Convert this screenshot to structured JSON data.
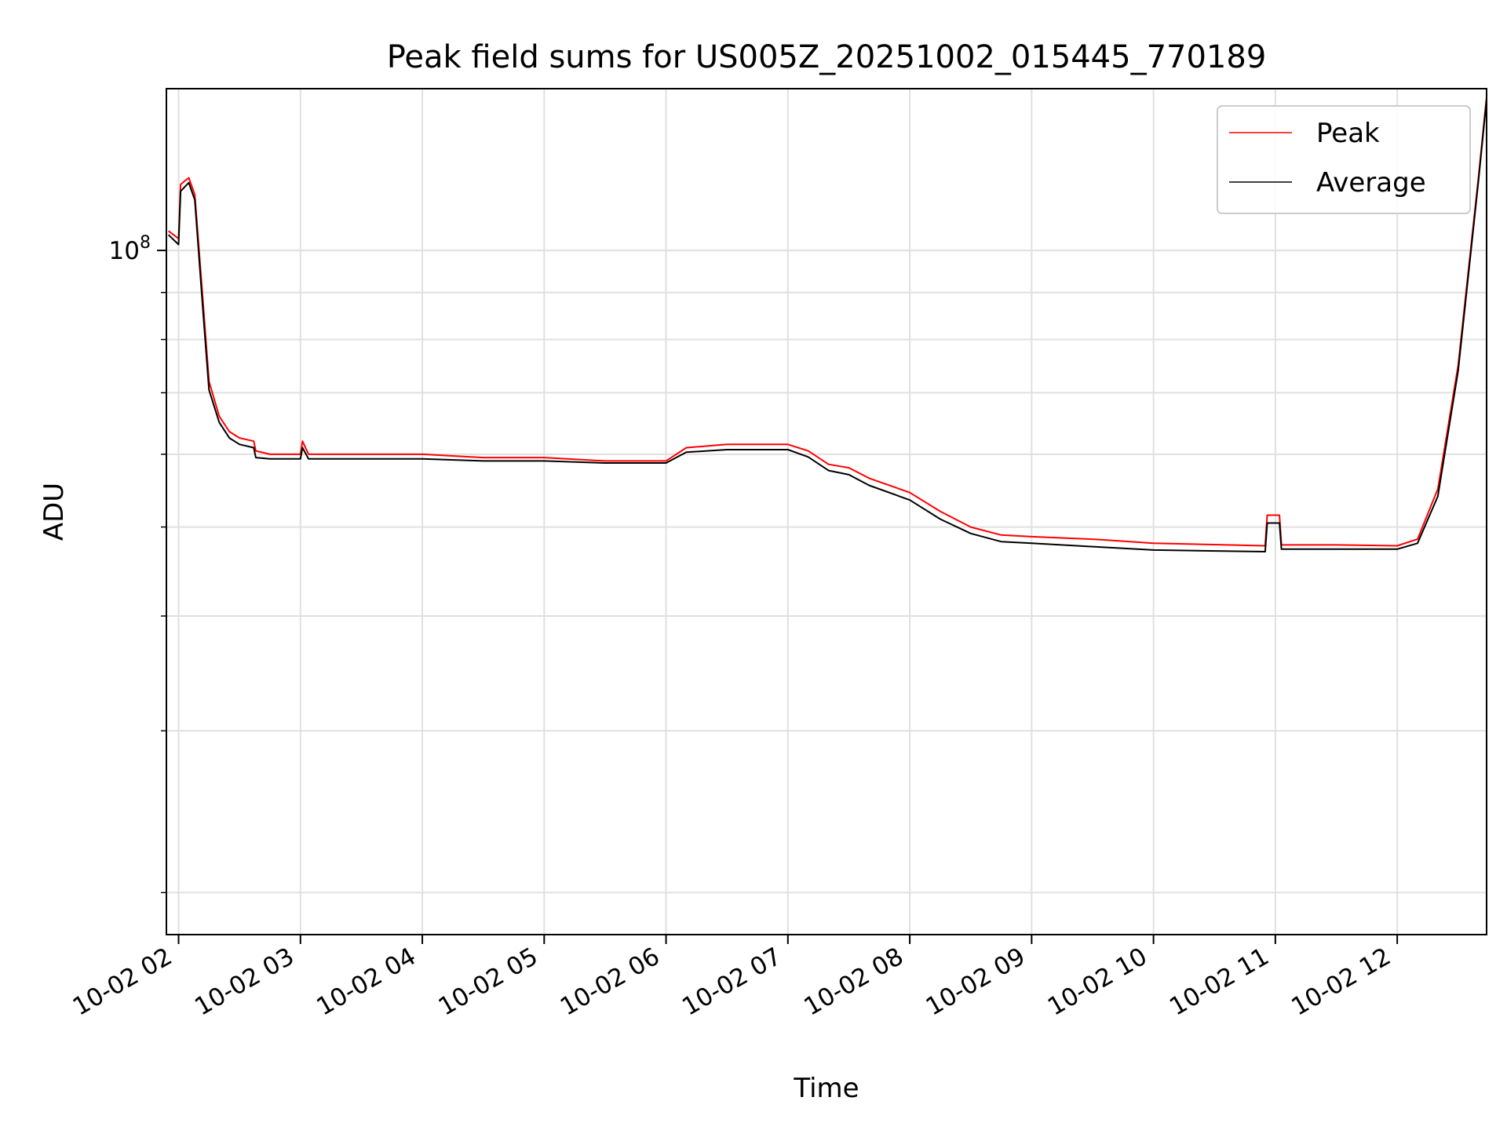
{
  "chart_data": {
    "type": "line",
    "title": "Peak field sums for US005Z_20251002_015445_770189",
    "xlabel": "Time",
    "ylabel": "ADU",
    "y_scale": "log",
    "ylim": [
      18000000,
      150000000
    ],
    "xlim": [
      "2025-10-02 01:54",
      "2025-10-02 12:44"
    ],
    "x_ticks": [
      "10-02 02",
      "10-02 03",
      "10-02 04",
      "10-02 05",
      "10-02 06",
      "10-02 07",
      "10-02 08",
      "10-02 09",
      "10-02 10",
      "10-02 11",
      "10-02 12"
    ],
    "y_tick_label": "10^8",
    "grid": true,
    "legend": {
      "placement": "top-right",
      "entries": [
        "Peak",
        "Average"
      ]
    },
    "colors": {
      "Peak": "#ff0000",
      "Average": "#000000"
    },
    "series": [
      {
        "name": "Peak",
        "color": "#ff0000",
        "x": [
          "2025-10-02 01:55",
          "2025-10-02 02:00",
          "2025-10-02 02:01",
          "2025-10-02 02:05",
          "2025-10-02 02:08",
          "2025-10-02 02:12",
          "2025-10-02 02:15",
          "2025-10-02 02:20",
          "2025-10-02 02:25",
          "2025-10-02 02:30",
          "2025-10-02 02:37",
          "2025-10-02 02:38",
          "2025-10-02 02:45",
          "2025-10-02 03:00",
          "2025-10-02 03:01",
          "2025-10-02 03:04",
          "2025-10-02 03:30",
          "2025-10-02 04:00",
          "2025-10-02 04:30",
          "2025-10-02 05:00",
          "2025-10-02 05:30",
          "2025-10-02 06:00",
          "2025-10-02 06:10",
          "2025-10-02 06:30",
          "2025-10-02 07:00",
          "2025-10-02 07:10",
          "2025-10-02 07:20",
          "2025-10-02 07:30",
          "2025-10-02 07:40",
          "2025-10-02 08:00",
          "2025-10-02 08:15",
          "2025-10-02 08:30",
          "2025-10-02 08:45",
          "2025-10-02 09:00",
          "2025-10-02 09:30",
          "2025-10-02 10:00",
          "2025-10-02 10:55",
          "2025-10-02 10:56",
          "2025-10-02 11:02",
          "2025-10-02 11:03",
          "2025-10-02 11:30",
          "2025-10-02 12:00",
          "2025-10-02 12:10",
          "2025-10-02 12:20",
          "2025-10-02 12:30",
          "2025-10-02 12:40",
          "2025-10-02 12:44"
        ],
        "values": [
          105000000,
          103000000,
          118000000,
          120000000,
          115000000,
          88000000,
          72000000,
          66000000,
          63500000,
          62500000,
          62000000,
          60500000,
          60000000,
          60000000,
          62000000,
          60000000,
          60000000,
          60000000,
          59500000,
          59500000,
          59000000,
          59000000,
          61000000,
          61500000,
          61500000,
          60500000,
          58500000,
          58000000,
          56500000,
          54500000,
          52000000,
          50000000,
          49000000,
          48800000,
          48500000,
          48000000,
          47700000,
          51500000,
          51500000,
          47800000,
          47800000,
          47700000,
          48500000,
          55000000,
          75000000,
          120000000,
          147000000
        ]
      },
      {
        "name": "Average",
        "color": "#000000",
        "x": [
          "2025-10-02 01:55",
          "2025-10-02 02:00",
          "2025-10-02 02:01",
          "2025-10-02 02:05",
          "2025-10-02 02:08",
          "2025-10-02 02:12",
          "2025-10-02 02:15",
          "2025-10-02 02:20",
          "2025-10-02 02:25",
          "2025-10-02 02:30",
          "2025-10-02 02:37",
          "2025-10-02 02:38",
          "2025-10-02 02:45",
          "2025-10-02 03:00",
          "2025-10-02 03:01",
          "2025-10-02 03:04",
          "2025-10-02 03:30",
          "2025-10-02 04:00",
          "2025-10-02 04:30",
          "2025-10-02 05:00",
          "2025-10-02 05:30",
          "2025-10-02 06:00",
          "2025-10-02 06:10",
          "2025-10-02 06:30",
          "2025-10-02 07:00",
          "2025-10-02 07:10",
          "2025-10-02 07:20",
          "2025-10-02 07:30",
          "2025-10-02 07:40",
          "2025-10-02 08:00",
          "2025-10-02 08:15",
          "2025-10-02 08:30",
          "2025-10-02 08:45",
          "2025-10-02 09:00",
          "2025-10-02 09:30",
          "2025-10-02 10:00",
          "2025-10-02 10:55",
          "2025-10-02 10:56",
          "2025-10-02 11:02",
          "2025-10-02 11:03",
          "2025-10-02 11:30",
          "2025-10-02 12:00",
          "2025-10-02 12:10",
          "2025-10-02 12:20",
          "2025-10-02 12:30",
          "2025-10-02 12:40",
          "2025-10-02 12:44"
        ],
        "values": [
          104000000,
          101500000,
          116000000,
          118500000,
          113500000,
          86000000,
          70500000,
          65000000,
          62500000,
          61500000,
          61000000,
          59500000,
          59300000,
          59300000,
          61000000,
          59300000,
          59300000,
          59300000,
          59000000,
          59000000,
          58700000,
          58700000,
          60300000,
          60700000,
          60700000,
          59600000,
          57600000,
          57000000,
          55500000,
          53500000,
          51000000,
          49200000,
          48200000,
          48000000,
          47600000,
          47200000,
          47000000,
          50500000,
          50500000,
          47300000,
          47300000,
          47300000,
          48000000,
          54000000,
          74000000,
          119000000,
          146000000
        ]
      }
    ]
  }
}
